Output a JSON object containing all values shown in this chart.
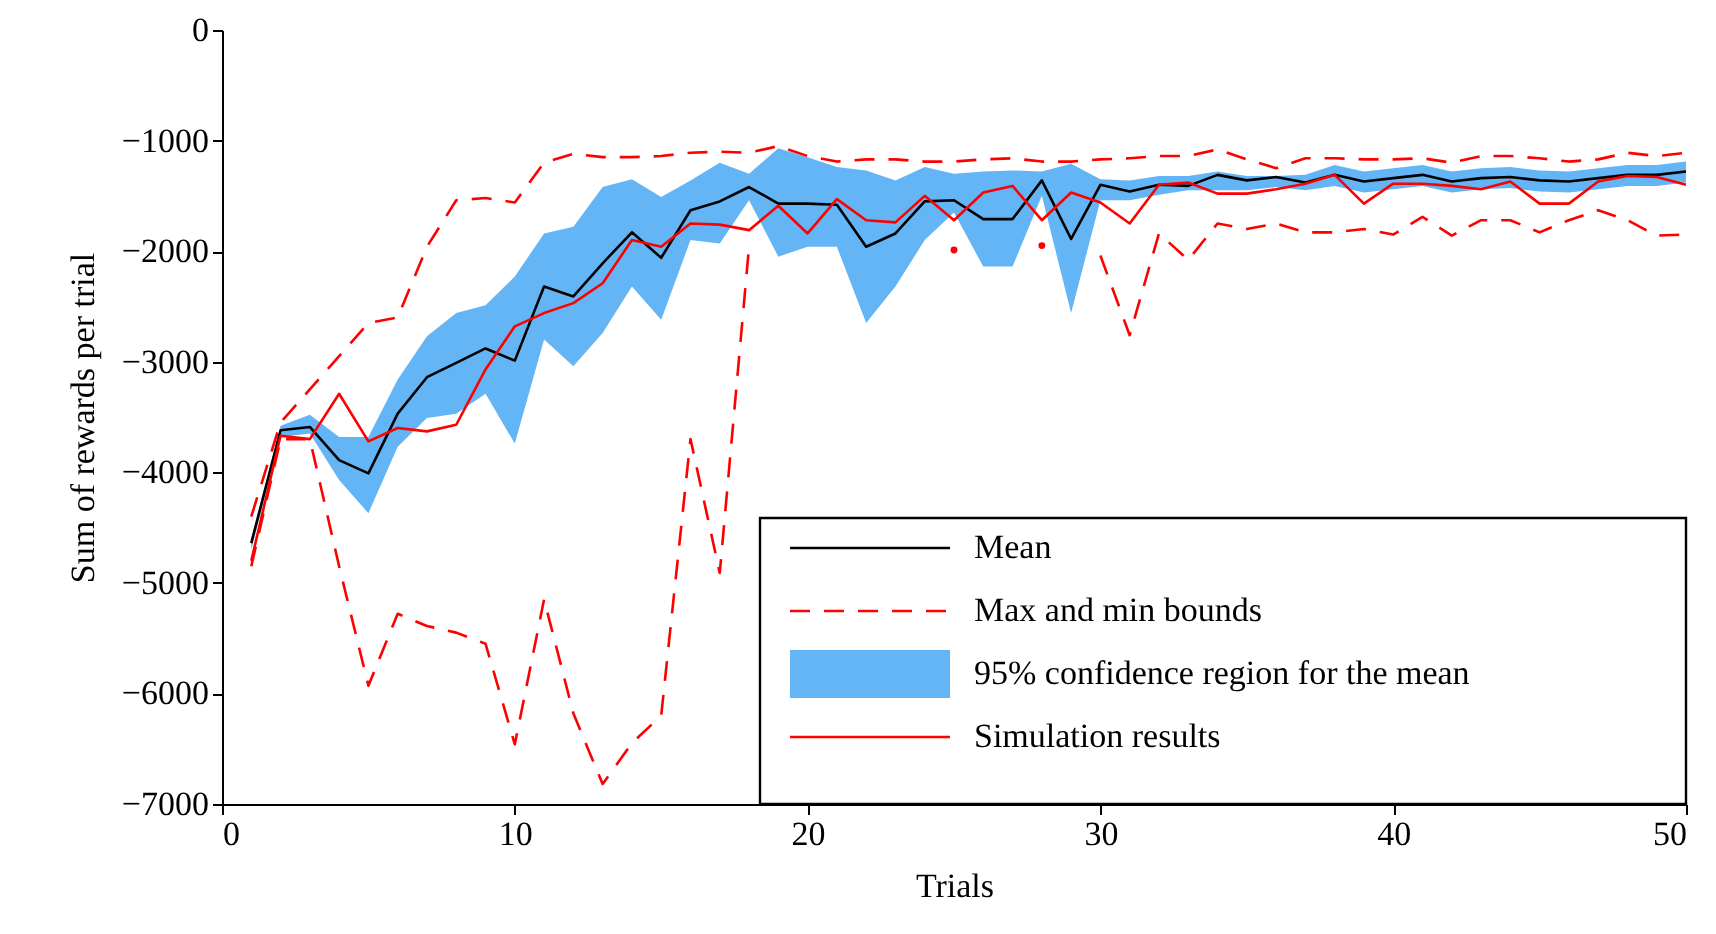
{
  "chart_data": {
    "type": "line",
    "xlabel": "Trials",
    "ylabel": "Sum of rewards per trial",
    "x": [
      1,
      2,
      3,
      4,
      5,
      6,
      7,
      8,
      9,
      10,
      11,
      12,
      13,
      14,
      15,
      16,
      17,
      18,
      19,
      20,
      21,
      22,
      23,
      24,
      25,
      26,
      27,
      28,
      29,
      30,
      31,
      32,
      33,
      34,
      35,
      36,
      37,
      38,
      39,
      40,
      41,
      42,
      43,
      44,
      45,
      46,
      47,
      48,
      49,
      50
    ],
    "xlim": [
      0,
      50
    ],
    "xticks": [
      0,
      10,
      20,
      30,
      40,
      50
    ],
    "ylim": [
      -7000,
      0
    ],
    "yticks": [
      -7000,
      -6000,
      -5000,
      -4000,
      -3000,
      -2000,
      -1000,
      0
    ],
    "legend": "bottom right",
    "series": [
      {
        "name": "Mean",
        "type": "line",
        "color": "#000000",
        "line_style": "solid",
        "values": [
          -4640,
          -3620,
          -3590,
          -3890,
          -4010,
          -3470,
          -3140,
          -3010,
          -2880,
          -2990,
          -2320,
          -2410,
          -2110,
          -1830,
          -2060,
          -1630,
          -1550,
          -1420,
          -1570,
          -1570,
          -1580,
          -1960,
          -1840,
          -1550,
          -1540,
          -1710,
          -1710,
          -1360,
          -1890,
          -1400,
          -1460,
          -1400,
          -1410,
          -1310,
          -1360,
          -1330,
          -1380,
          -1310,
          -1370,
          -1340,
          -1310,
          -1370,
          -1340,
          -1330,
          -1360,
          -1370,
          -1340,
          -1310,
          -1310,
          -1280
        ]
      },
      {
        "name": "Max and min bounds",
        "type": "line",
        "color": "#ff0000",
        "line_style": "dashed",
        "values": [
          -4400,
          -3550,
          -3250,
          -2950,
          -2650,
          -2600,
          -1960,
          -1540,
          -1520,
          -1560,
          -1200,
          -1120,
          -1150,
          -1150,
          -1140,
          -1110,
          -1100,
          -1110,
          -1050,
          -1140,
          -1190,
          -1170,
          -1170,
          -1190,
          -1190,
          -1170,
          -1160,
          -1190,
          -1190,
          -1170,
          -1160,
          -1140,
          -1140,
          -1080,
          -1170,
          -1250,
          -1160,
          -1160,
          -1170,
          -1170,
          -1160,
          -1200,
          -1140,
          -1140,
          -1160,
          -1190,
          -1170,
          -1110,
          -1140,
          -1110
        ]
      },
      {
        "name": "95% confidence region for the mean",
        "type": "area",
        "color": "#64b5f6",
        "values": [
          null,
          null,
          null,
          null,
          null,
          null,
          null,
          null,
          null,
          null,
          null,
          null,
          null,
          null,
          null,
          null,
          null,
          null,
          null,
          null,
          null,
          null,
          null,
          null,
          null,
          null,
          null,
          null,
          null,
          null,
          null,
          null,
          null,
          null,
          null,
          null,
          null,
          null,
          null,
          null,
          null,
          null,
          null,
          null,
          null,
          null,
          null,
          null,
          null,
          null
        ],
        "lower": [
          -4700,
          -3680,
          -3650,
          -4070,
          -4370,
          -3770,
          -3510,
          -3470,
          -3290,
          -3740,
          -2800,
          -3040,
          -2740,
          -2320,
          -2620,
          -1900,
          -1930,
          -1540,
          -2050,
          -1960,
          -1960,
          -2650,
          -2320,
          -1900,
          -1650,
          -2140,
          -2140,
          -1500,
          -2560,
          -1540,
          -1540,
          -1490,
          -1450,
          -1450,
          -1450,
          -1420,
          -1450,
          -1410,
          -1470,
          -1440,
          -1410,
          -1470,
          -1440,
          -1430,
          -1460,
          -1470,
          -1440,
          -1410,
          -1410,
          -1380
        ],
        "upper": [
          -4600,
          -3580,
          -3480,
          -3680,
          -3680,
          -3160,
          -2770,
          -2560,
          -2490,
          -2230,
          -1840,
          -1780,
          -1420,
          -1350,
          -1510,
          -1360,
          -1200,
          -1300,
          -1070,
          -1150,
          -1240,
          -1270,
          -1360,
          -1240,
          -1300,
          -1280,
          -1270,
          -1280,
          -1210,
          -1350,
          -1360,
          -1320,
          -1320,
          -1280,
          -1320,
          -1320,
          -1310,
          -1220,
          -1280,
          -1250,
          -1220,
          -1280,
          -1250,
          -1240,
          -1270,
          -1280,
          -1250,
          -1220,
          -1220,
          -1190
        ]
      },
      {
        "type": "line",
        "color": "#ff0000",
        "line_style": "dashed",
        "values": [
          -4850,
          -3700,
          -3700,
          -4850,
          -5930,
          -5280,
          -5390,
          -5450,
          -5550,
          -6460,
          -5150,
          -6180,
          -6820,
          -6450,
          -6200,
          -3700,
          -4910,
          -1960,
          null,
          null,
          null,
          null,
          null,
          null,
          -1990,
          null,
          null,
          -1950,
          null,
          -2040,
          -2760,
          -1840,
          -2080,
          -1750,
          -1800,
          -1750,
          -1830,
          -1830,
          -1800,
          -1850,
          -1690,
          -1860,
          -1720,
          -1720,
          -1830,
          -1720,
          -1630,
          -1720,
          -1860,
          -1850
        ]
      },
      {
        "name": "Simulation results",
        "type": "line",
        "color": "#ff0000",
        "line_style": "solid",
        "values": [
          -4800,
          -3670,
          -3700,
          -3290,
          -3720,
          -3600,
          -3630,
          -3570,
          -3070,
          -2680,
          -2560,
          -2470,
          -2290,
          -1900,
          -1960,
          -1750,
          -1760,
          -1810,
          -1590,
          -1840,
          -1530,
          -1720,
          -1740,
          -1500,
          -1720,
          -1470,
          -1410,
          -1720,
          -1470,
          -1560,
          -1750,
          -1400,
          -1380,
          -1480,
          -1480,
          -1440,
          -1390,
          -1310,
          -1570,
          -1390,
          -1390,
          -1410,
          -1440,
          -1370,
          -1570,
          -1570,
          -1370,
          -1320,
          -1330,
          -1400
        ]
      }
    ]
  }
}
